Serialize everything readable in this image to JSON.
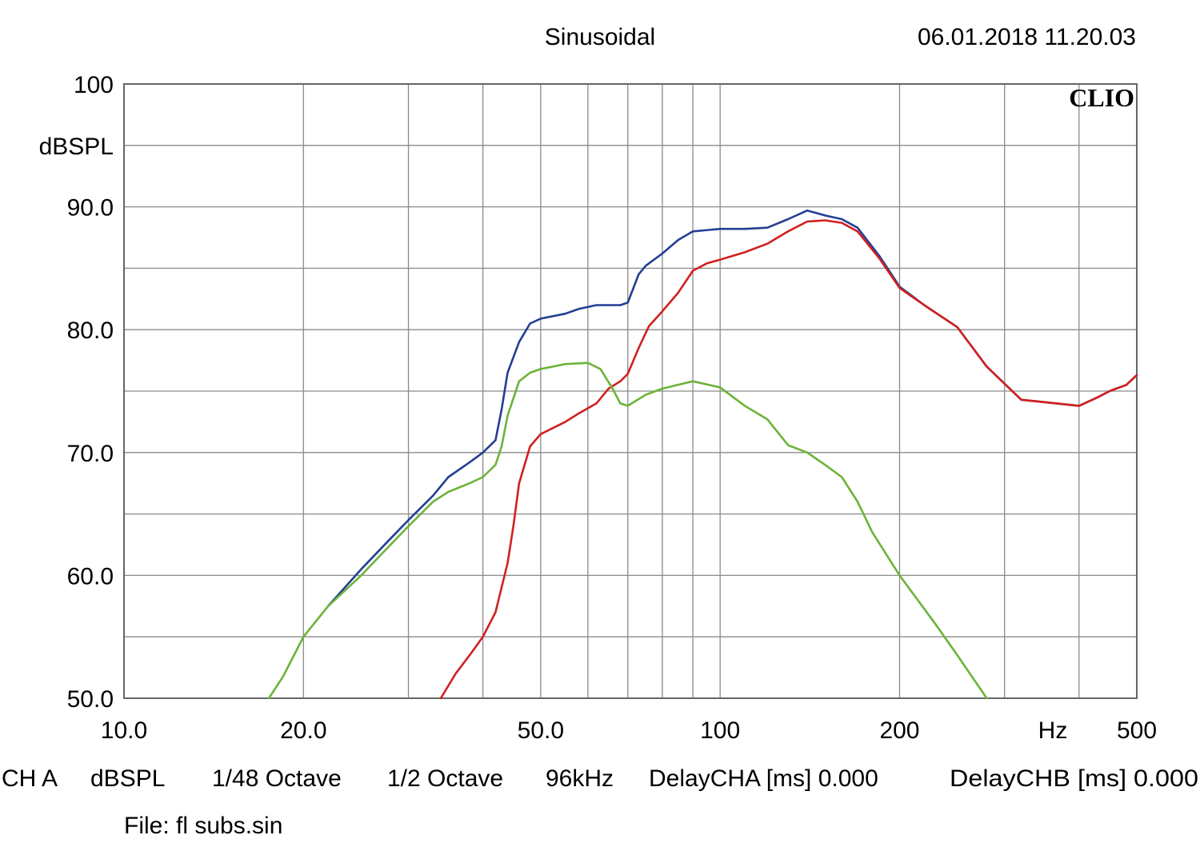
{
  "header": {
    "title": "Sinusoidal",
    "timestamp": "06.01.2018 11.20.03",
    "brand": "CLIO"
  },
  "footer": {
    "channel": "CH A",
    "unit": "dBSPL",
    "resolution": "1/48 Octave",
    "smoothing": "1/2 Octave",
    "samplerate": "96kHz",
    "delay_a": "DelayCHA [ms] 0.000",
    "delay_b": "DelayCHB [ms] 0.000",
    "file": "File: fl subs.sin"
  },
  "chart_data": {
    "type": "line",
    "xscale": "log",
    "xlim": [
      10,
      500
    ],
    "ylim": [
      50,
      100
    ],
    "ylabel": "dBSPL",
    "xlabel": "Hz",
    "grid": true,
    "x_tick_labels": [
      {
        "value": 10,
        "label": "10.0"
      },
      {
        "value": 20,
        "label": "20.0"
      },
      {
        "value": 50,
        "label": "50.0"
      },
      {
        "value": 100,
        "label": "100"
      },
      {
        "value": 200,
        "label": "200"
      },
      {
        "value": 500,
        "label": "500"
      }
    ],
    "x_grid_values": [
      20,
      30,
      40,
      50,
      60,
      70,
      80,
      90,
      100,
      200,
      300,
      400
    ],
    "y_tick_labels": [
      {
        "value": 100,
        "label": "100"
      },
      {
        "value": 90,
        "label": "90.0"
      },
      {
        "value": 80,
        "label": "80.0"
      },
      {
        "value": 70,
        "label": "70.0"
      },
      {
        "value": 60,
        "label": "60.0"
      },
      {
        "value": 50,
        "label": "50.0"
      }
    ],
    "y_grid_step": 5,
    "series": [
      {
        "color": "#233f93",
        "points": [
          [
            22,
            57.5
          ],
          [
            25,
            60.5
          ],
          [
            28,
            63
          ],
          [
            30,
            64.5
          ],
          [
            33,
            66.5
          ],
          [
            35,
            68
          ],
          [
            38,
            69.2
          ],
          [
            40,
            70
          ],
          [
            42,
            71
          ],
          [
            43,
            73.5
          ],
          [
            44,
            76.5
          ],
          [
            46,
            79
          ],
          [
            48,
            80.5
          ],
          [
            50,
            80.9
          ],
          [
            55,
            81.3
          ],
          [
            58,
            81.7
          ],
          [
            62,
            82
          ],
          [
            68,
            82
          ],
          [
            70,
            82.2
          ],
          [
            73,
            84.5
          ],
          [
            75,
            85.2
          ],
          [
            80,
            86.2
          ],
          [
            85,
            87.3
          ],
          [
            90,
            88
          ],
          [
            100,
            88.2
          ],
          [
            110,
            88.2
          ],
          [
            120,
            88.3
          ],
          [
            130,
            89
          ],
          [
            140,
            89.7
          ],
          [
            150,
            89.3
          ],
          [
            160,
            89
          ],
          [
            170,
            88.3
          ],
          [
            185,
            86
          ],
          [
            200,
            83.5
          ],
          [
            220,
            82
          ],
          [
            250,
            80.2
          ],
          [
            280,
            77
          ],
          [
            320,
            74.3
          ],
          [
            350,
            74.1
          ],
          [
            400,
            73.8
          ],
          [
            430,
            74.5
          ],
          [
            450,
            75
          ],
          [
            480,
            75.5
          ],
          [
            500,
            76.3
          ]
        ]
      },
      {
        "color": "#d02020",
        "points": [
          [
            34,
            50
          ],
          [
            36,
            52
          ],
          [
            38,
            53.5
          ],
          [
            40,
            55
          ],
          [
            42,
            57
          ],
          [
            44,
            61
          ],
          [
            45,
            64
          ],
          [
            46,
            67.5
          ],
          [
            48,
            70.5
          ],
          [
            50,
            71.5
          ],
          [
            55,
            72.5
          ],
          [
            58,
            73.2
          ],
          [
            62,
            74
          ],
          [
            65,
            75.2
          ],
          [
            68,
            75.8
          ],
          [
            70,
            76.4
          ],
          [
            73,
            78.5
          ],
          [
            76,
            80.3
          ],
          [
            80,
            81.5
          ],
          [
            85,
            83
          ],
          [
            90,
            84.8
          ],
          [
            95,
            85.4
          ],
          [
            100,
            85.7
          ],
          [
            110,
            86.3
          ],
          [
            120,
            87
          ],
          [
            130,
            88
          ],
          [
            140,
            88.8
          ],
          [
            150,
            88.9
          ],
          [
            160,
            88.7
          ],
          [
            170,
            88
          ],
          [
            185,
            85.8
          ],
          [
            200,
            83.4
          ],
          [
            220,
            82
          ],
          [
            250,
            80.2
          ],
          [
            280,
            77
          ],
          [
            320,
            74.3
          ],
          [
            350,
            74.1
          ],
          [
            400,
            73.8
          ],
          [
            430,
            74.5
          ],
          [
            450,
            75
          ],
          [
            480,
            75.5
          ],
          [
            500,
            76.3
          ]
        ]
      },
      {
        "color": "#6db33a",
        "points": [
          [
            17.5,
            50
          ],
          [
            18.5,
            51.8
          ],
          [
            20,
            55
          ],
          [
            22,
            57.5
          ],
          [
            25,
            60
          ],
          [
            28,
            62.5
          ],
          [
            30,
            64
          ],
          [
            33,
            66
          ],
          [
            35,
            66.8
          ],
          [
            38,
            67.5
          ],
          [
            40,
            68
          ],
          [
            42,
            69
          ],
          [
            43,
            70.5
          ],
          [
            44,
            73
          ],
          [
            46,
            75.8
          ],
          [
            48,
            76.5
          ],
          [
            50,
            76.8
          ],
          [
            55,
            77.2
          ],
          [
            60,
            77.3
          ],
          [
            63,
            76.8
          ],
          [
            66,
            75.2
          ],
          [
            68,
            74
          ],
          [
            70,
            73.8
          ],
          [
            75,
            74.7
          ],
          [
            80,
            75.2
          ],
          [
            90,
            75.8
          ],
          [
            100,
            75.3
          ],
          [
            110,
            73.8
          ],
          [
            120,
            72.7
          ],
          [
            130,
            70.6
          ],
          [
            140,
            70
          ],
          [
            150,
            69
          ],
          [
            160,
            68
          ],
          [
            170,
            66
          ],
          [
            180,
            63.5
          ],
          [
            200,
            60
          ],
          [
            230,
            56
          ],
          [
            250,
            53.5
          ],
          [
            280,
            50
          ]
        ]
      }
    ]
  }
}
